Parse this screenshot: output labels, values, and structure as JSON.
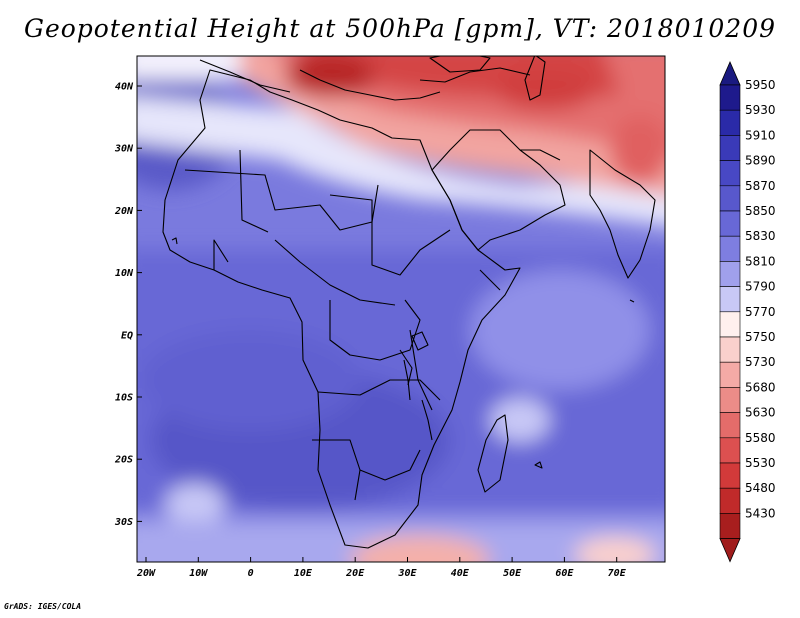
{
  "title": "Geopotential Height at 500hPa [gpm], VT: 2018010209",
  "credit": "GrADS: IGES/COLA",
  "map": {
    "variable": "Geopotential Height at 500hPa",
    "units": "gpm",
    "valid_time": "2018010209",
    "lon_labels": [
      "20W",
      "10W",
      "0",
      "10E",
      "20E",
      "30E",
      "40E",
      "50E",
      "60E",
      "70E"
    ],
    "lat_labels": [
      "40N",
      "30N",
      "20N",
      "10N",
      "EQ",
      "10S",
      "20S",
      "30S"
    ]
  },
  "colorbar": {
    "levels": [
      {
        "label": "5950",
        "color": "#1e1a8c"
      },
      {
        "label": "5930",
        "color": "#2a2aa8"
      },
      {
        "label": "5910",
        "color": "#3a3ab8"
      },
      {
        "label": "5890",
        "color": "#4848c4"
      },
      {
        "label": "5870",
        "color": "#5858cc"
      },
      {
        "label": "5850",
        "color": "#6868d6"
      },
      {
        "label": "5830",
        "color": "#7e7ee0"
      },
      {
        "label": "5810",
        "color": "#a0a0ec"
      },
      {
        "label": "5790",
        "color": "#c8c8f6"
      },
      {
        "label": "5770",
        "color": "#fff0ee"
      },
      {
        "label": "5750",
        "color": "#fad0cc"
      },
      {
        "label": "5730",
        "color": "#f4aaa6"
      },
      {
        "label": "5680",
        "color": "#ec8c88"
      },
      {
        "label": "5630",
        "color": "#e46c6a"
      },
      {
        "label": "5580",
        "color": "#dc5050"
      },
      {
        "label": "5530",
        "color": "#d23a3a"
      },
      {
        "label": "5480",
        "color": "#c02a2a"
      },
      {
        "label": "5430",
        "color": "#a81e1e"
      }
    ],
    "top_triangle_color": "#1a1a80",
    "bottom_triangle_color": "#a01c1c"
  }
}
